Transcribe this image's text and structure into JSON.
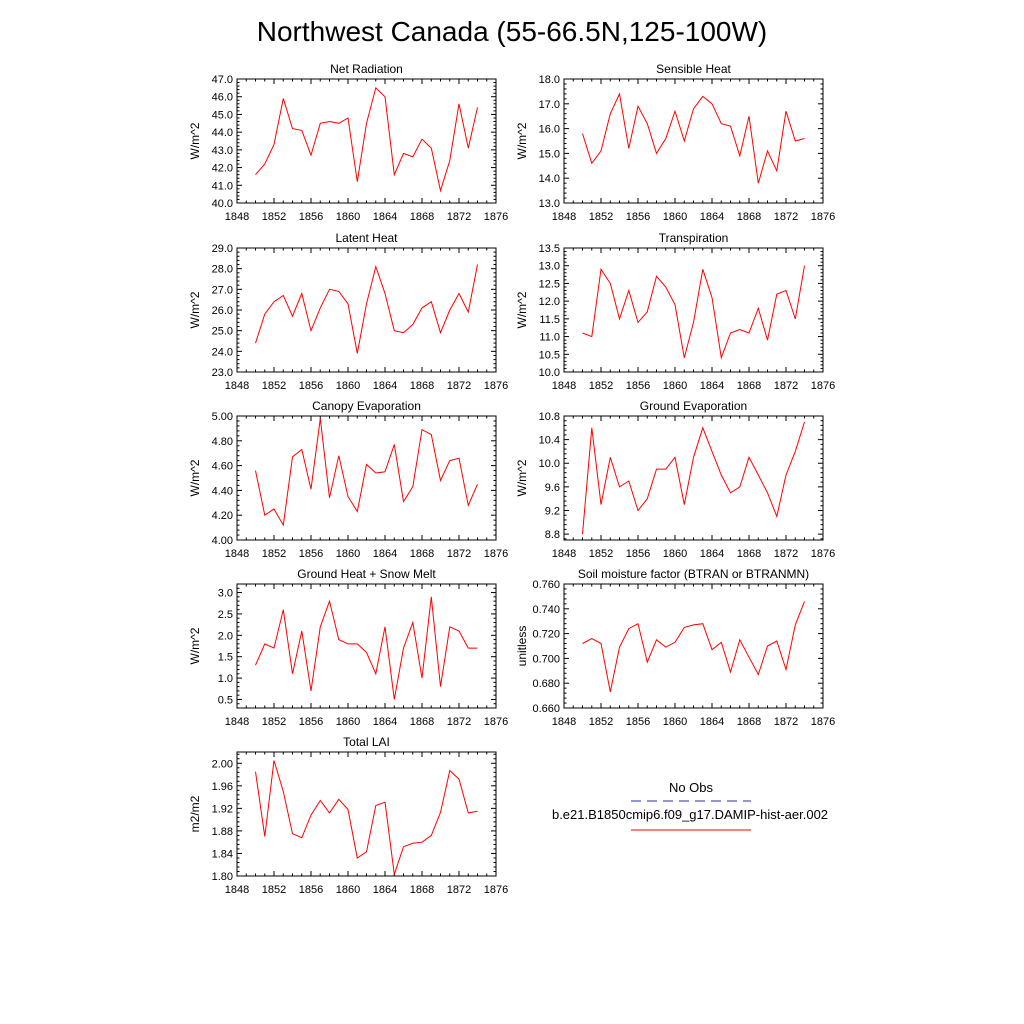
{
  "page_title": "Northwest Canada (55-66.5N,125-100W)",
  "legend": {
    "obs_label": "No Obs",
    "obs_color": "#2a2ab0",
    "model_label": "b.e21.B1850cmip6.f09_g17.DAMIP-hist-aer.002",
    "model_color": "#ff0000"
  },
  "chart_data": [
    {
      "type": "line",
      "title": "Net Radiation",
      "ylabel": "W/m^2",
      "xlim": [
        1848,
        1876
      ],
      "ylim": [
        40.0,
        47.0
      ],
      "x_ticks": [
        "1848",
        "1852",
        "1856",
        "1860",
        "1864",
        "1868",
        "1872",
        "1876"
      ],
      "y_ticks": [
        "40.0",
        "41.0",
        "42.0",
        "43.0",
        "44.0",
        "45.0",
        "46.0",
        "47.0"
      ],
      "series": [
        {
          "x": [
            1850,
            1851,
            1852,
            1853,
            1854,
            1855,
            1856,
            1857,
            1858,
            1859,
            1860,
            1861,
            1862,
            1863,
            1864,
            1865,
            1866,
            1867,
            1868,
            1869,
            1870,
            1871,
            1872,
            1873,
            1874
          ],
          "values": [
            41.6,
            42.2,
            43.3,
            45.9,
            44.2,
            44.1,
            42.7,
            44.5,
            44.6,
            44.5,
            44.8,
            41.2,
            44.5,
            46.5,
            46.0,
            41.6,
            42.8,
            42.6,
            43.6,
            43.1,
            40.7,
            42.4,
            45.6,
            43.1,
            45.4
          ]
        }
      ]
    },
    {
      "type": "line",
      "title": "Sensible Heat",
      "ylabel": "W/m^2",
      "xlim": [
        1848,
        1876
      ],
      "ylim": [
        13.0,
        18.0
      ],
      "x_ticks": [
        "1848",
        "1852",
        "1856",
        "1860",
        "1864",
        "1868",
        "1872",
        "1876"
      ],
      "y_ticks": [
        "13.0",
        "14.0",
        "15.0",
        "16.0",
        "17.0",
        "18.0"
      ],
      "series": [
        {
          "x": [
            1850,
            1851,
            1852,
            1853,
            1854,
            1855,
            1856,
            1857,
            1858,
            1859,
            1860,
            1861,
            1862,
            1863,
            1864,
            1865,
            1866,
            1867,
            1868,
            1869,
            1870,
            1871,
            1872,
            1873,
            1874
          ],
          "values": [
            15.8,
            14.6,
            15.1,
            16.6,
            17.4,
            15.2,
            16.9,
            16.2,
            15.0,
            15.6,
            16.7,
            15.5,
            16.8,
            17.3,
            17.0,
            16.2,
            16.1,
            14.9,
            16.5,
            13.8,
            15.1,
            14.3,
            16.7,
            15.5,
            15.6
          ]
        }
      ]
    },
    {
      "type": "line",
      "title": "Latent Heat",
      "ylabel": "W/m^2",
      "xlim": [
        1848,
        1876
      ],
      "ylim": [
        23.0,
        29.0
      ],
      "x_ticks": [
        "1848",
        "1852",
        "1856",
        "1860",
        "1864",
        "1868",
        "1872",
        "1876"
      ],
      "y_ticks": [
        "23.0",
        "24.0",
        "25.0",
        "26.0",
        "27.0",
        "28.0",
        "29.0"
      ],
      "series": [
        {
          "x": [
            1850,
            1851,
            1852,
            1853,
            1854,
            1855,
            1856,
            1857,
            1858,
            1859,
            1860,
            1861,
            1862,
            1863,
            1864,
            1865,
            1866,
            1867,
            1868,
            1869,
            1870,
            1871,
            1872,
            1873,
            1874
          ],
          "values": [
            24.4,
            25.8,
            26.4,
            26.7,
            25.7,
            26.8,
            25.0,
            26.1,
            27.0,
            26.9,
            26.3,
            23.9,
            26.3,
            28.1,
            26.8,
            25.0,
            24.9,
            25.3,
            26.1,
            26.4,
            24.9,
            26.0,
            26.8,
            25.9,
            28.2
          ]
        }
      ]
    },
    {
      "type": "line",
      "title": "Transpiration",
      "ylabel": "W/m^2",
      "xlim": [
        1848,
        1876
      ],
      "ylim": [
        10.0,
        13.5
      ],
      "x_ticks": [
        "1848",
        "1852",
        "1856",
        "1860",
        "1864",
        "1868",
        "1872",
        "1876"
      ],
      "y_ticks": [
        "10.0",
        "10.5",
        "11.0",
        "11.5",
        "12.0",
        "12.5",
        "13.0",
        "13.5"
      ],
      "series": [
        {
          "x": [
            1850,
            1851,
            1852,
            1853,
            1854,
            1855,
            1856,
            1857,
            1858,
            1859,
            1860,
            1861,
            1862,
            1863,
            1864,
            1865,
            1866,
            1867,
            1868,
            1869,
            1870,
            1871,
            1872,
            1873,
            1874
          ],
          "values": [
            11.1,
            11.0,
            12.9,
            12.5,
            11.5,
            12.3,
            11.4,
            11.7,
            12.7,
            12.4,
            11.9,
            10.4,
            11.4,
            12.9,
            12.1,
            10.4,
            11.1,
            11.2,
            11.1,
            11.8,
            10.9,
            12.2,
            12.3,
            11.5,
            13.0
          ]
        }
      ]
    },
    {
      "type": "line",
      "title": "Canopy Evaporation",
      "ylabel": "W/m^2",
      "xlim": [
        1848,
        1876
      ],
      "ylim": [
        4.0,
        5.0
      ],
      "x_ticks": [
        "1848",
        "1852",
        "1856",
        "1860",
        "1864",
        "1868",
        "1872",
        "1876"
      ],
      "y_ticks": [
        "4.00",
        "4.20",
        "4.40",
        "4.60",
        "4.80",
        "5.00"
      ],
      "series": [
        {
          "x": [
            1850,
            1851,
            1852,
            1853,
            1854,
            1855,
            1856,
            1857,
            1858,
            1859,
            1860,
            1861,
            1862,
            1863,
            1864,
            1865,
            1866,
            1867,
            1868,
            1869,
            1870,
            1871,
            1872,
            1873,
            1874
          ],
          "values": [
            4.56,
            4.2,
            4.25,
            4.12,
            4.67,
            4.73,
            4.41,
            4.98,
            4.34,
            4.68,
            4.35,
            4.23,
            4.61,
            4.54,
            4.55,
            4.77,
            4.31,
            4.43,
            4.89,
            4.85,
            4.48,
            4.64,
            4.66,
            4.28,
            4.45
          ]
        }
      ]
    },
    {
      "type": "line",
      "title": "Ground Evaporation",
      "ylabel": "W/m^2",
      "xlim": [
        1848,
        1876
      ],
      "ylim": [
        8.7,
        10.8
      ],
      "x_ticks": [
        "1848",
        "1852",
        "1856",
        "1860",
        "1864",
        "1868",
        "1872",
        "1876"
      ],
      "y_ticks": [
        "8.8",
        "9.2",
        "9.6",
        "10.0",
        "10.4",
        "10.8"
      ],
      "series": [
        {
          "x": [
            1850,
            1851,
            1852,
            1853,
            1854,
            1855,
            1856,
            1857,
            1858,
            1859,
            1860,
            1861,
            1862,
            1863,
            1864,
            1865,
            1866,
            1867,
            1868,
            1869,
            1870,
            1871,
            1872,
            1873,
            1874
          ],
          "values": [
            8.8,
            10.6,
            9.3,
            10.1,
            9.6,
            9.7,
            9.2,
            9.4,
            9.9,
            9.9,
            10.1,
            9.3,
            10.1,
            10.6,
            10.2,
            9.8,
            9.5,
            9.6,
            10.1,
            9.8,
            9.5,
            9.1,
            9.8,
            10.2,
            10.7
          ]
        }
      ]
    },
    {
      "type": "line",
      "title": "Ground Heat + Snow Melt",
      "ylabel": "W/m^2",
      "xlim": [
        1848,
        1876
      ],
      "ylim": [
        0.3,
        3.2
      ],
      "x_ticks": [
        "1848",
        "1852",
        "1856",
        "1860",
        "1864",
        "1868",
        "1872",
        "1876"
      ],
      "y_ticks": [
        "0.5",
        "1.0",
        "1.5",
        "2.0",
        "2.5",
        "3.0"
      ],
      "series": [
        {
          "x": [
            1850,
            1851,
            1852,
            1853,
            1854,
            1855,
            1856,
            1857,
            1858,
            1859,
            1860,
            1861,
            1862,
            1863,
            1864,
            1865,
            1866,
            1867,
            1868,
            1869,
            1870,
            1871,
            1872,
            1873,
            1874
          ],
          "values": [
            1.3,
            1.8,
            1.7,
            2.6,
            1.1,
            2.1,
            0.7,
            2.2,
            2.8,
            1.9,
            1.8,
            1.8,
            1.6,
            1.1,
            2.2,
            0.5,
            1.7,
            2.3,
            1.0,
            2.9,
            0.8,
            2.2,
            2.1,
            1.7,
            1.7
          ]
        }
      ]
    },
    {
      "type": "line",
      "title": "Soil moisture factor (BTRAN or BTRANMN)",
      "ylabel": "unitless",
      "xlim": [
        1848,
        1876
      ],
      "ylim": [
        0.66,
        0.76
      ],
      "x_ticks": [
        "1848",
        "1852",
        "1856",
        "1860",
        "1864",
        "1868",
        "1872",
        "1876"
      ],
      "y_ticks": [
        "0.660",
        "0.680",
        "0.700",
        "0.720",
        "0.740",
        "0.760"
      ],
      "series": [
        {
          "x": [
            1850,
            1851,
            1852,
            1853,
            1854,
            1855,
            1856,
            1857,
            1858,
            1859,
            1860,
            1861,
            1862,
            1863,
            1864,
            1865,
            1866,
            1867,
            1868,
            1869,
            1870,
            1871,
            1872,
            1873,
            1874
          ],
          "values": [
            0.712,
            0.716,
            0.712,
            0.673,
            0.709,
            0.724,
            0.728,
            0.697,
            0.715,
            0.709,
            0.713,
            0.725,
            0.727,
            0.728,
            0.707,
            0.713,
            0.689,
            0.715,
            0.701,
            0.687,
            0.71,
            0.714,
            0.691,
            0.727,
            0.746
          ]
        }
      ]
    },
    {
      "type": "line",
      "title": "Total LAI",
      "ylabel": "m2/m2",
      "xlim": [
        1848,
        1876
      ],
      "ylim": [
        1.8,
        2.02
      ],
      "x_ticks": [
        "1848",
        "1852",
        "1856",
        "1860",
        "1864",
        "1868",
        "1872",
        "1876"
      ],
      "y_ticks": [
        "1.80",
        "1.84",
        "1.88",
        "1.92",
        "1.96",
        "2.00"
      ],
      "series": [
        {
          "x": [
            1850,
            1851,
            1852,
            1853,
            1854,
            1855,
            1856,
            1857,
            1858,
            1859,
            1860,
            1861,
            1862,
            1863,
            1864,
            1865,
            1866,
            1867,
            1868,
            1869,
            1870,
            1871,
            1872,
            1873,
            1874
          ],
          "values": [
            1.985,
            1.87,
            2.005,
            1.95,
            1.875,
            1.868,
            1.908,
            1.934,
            1.912,
            1.936,
            1.918,
            1.832,
            1.843,
            1.925,
            1.931,
            1.803,
            1.852,
            1.858,
            1.86,
            1.872,
            1.913,
            1.987,
            1.972,
            1.912,
            1.915
          ]
        }
      ]
    }
  ]
}
